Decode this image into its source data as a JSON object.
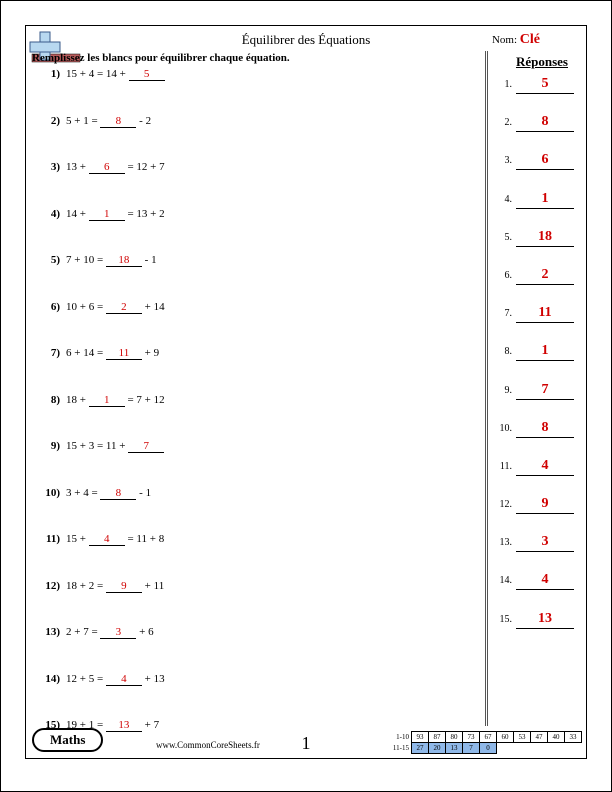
{
  "title": "Équilibrer des Équations",
  "name_label": "Nom:",
  "key_label": "Clé",
  "instruction": "Remplissez les blancs pour équilibrer chaque équation.",
  "answers_header": "Réponses",
  "subject": "Maths",
  "url": "www.CommonCoreSheets.fr",
  "page_number": "1",
  "problems": [
    {
      "n": "1)",
      "before": "15 + 4 = 14 + ",
      "blank": "5",
      "after": ""
    },
    {
      "n": "2)",
      "before": "5 + 1 = ",
      "blank": "8",
      "after": " - 2"
    },
    {
      "n": "3)",
      "before": "13 + ",
      "blank": "6",
      "after": " = 12 + 7"
    },
    {
      "n": "4)",
      "before": "14 + ",
      "blank": "1",
      "after": " = 13 + 2"
    },
    {
      "n": "5)",
      "before": "7 + 10 = ",
      "blank": "18",
      "after": " - 1"
    },
    {
      "n": "6)",
      "before": "10 + 6 = ",
      "blank": "2",
      "after": " + 14"
    },
    {
      "n": "7)",
      "before": "6 + 14 = ",
      "blank": "11",
      "after": " + 9"
    },
    {
      "n": "8)",
      "before": "18 + ",
      "blank": "1",
      "after": " = 7 + 12"
    },
    {
      "n": "9)",
      "before": "15 + 3 = 11 + ",
      "blank": "7",
      "after": ""
    },
    {
      "n": "10)",
      "before": "3 + 4 = ",
      "blank": "8",
      "after": " - 1"
    },
    {
      "n": "11)",
      "before": "15 + ",
      "blank": "4",
      "after": " = 11 + 8"
    },
    {
      "n": "12)",
      "before": "18 + 2 = ",
      "blank": "9",
      "after": " + 11"
    },
    {
      "n": "13)",
      "before": "2 + 7 = ",
      "blank": "3",
      "after": " + 6"
    },
    {
      "n": "14)",
      "before": "12 + 5 = ",
      "blank": "4",
      "after": " + 13"
    },
    {
      "n": "15)",
      "before": "19 + 1 = ",
      "blank": "13",
      "after": " + 7"
    }
  ],
  "answers": [
    "5",
    "8",
    "6",
    "1",
    "18",
    "2",
    "11",
    "1",
    "7",
    "8",
    "4",
    "9",
    "3",
    "4",
    "13"
  ],
  "score_row1_label": "1-10",
  "score_row2_label": "11-15",
  "score_row1": [
    "93",
    "87",
    "80",
    "73",
    "67",
    "60",
    "53",
    "47",
    "40",
    "33"
  ],
  "score_row2": [
    "27",
    "20",
    "13",
    "7",
    "0",
    "",
    "",
    "",
    "",
    ""
  ],
  "colors": {
    "answer_red": "#d00000",
    "grid_blue": "#8fb8e8"
  }
}
